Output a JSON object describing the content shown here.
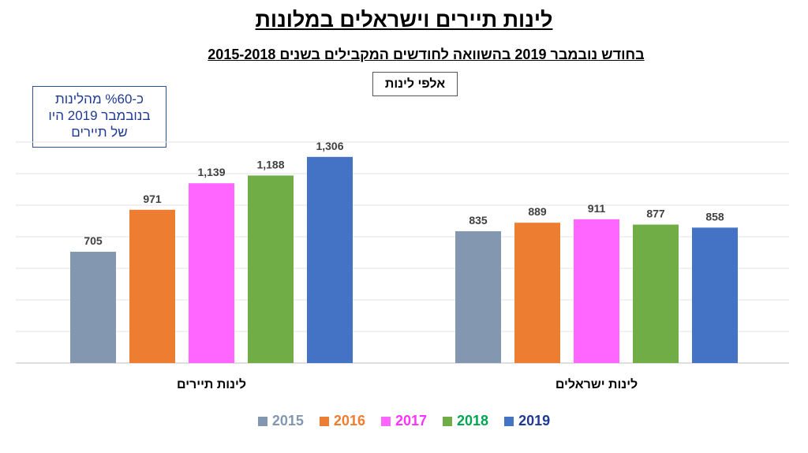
{
  "chart_data": {
    "type": "bar",
    "title": "לינות תיירים  וישראלים במלונות",
    "subtitle": "בחודש נובמבר 2019 בהשוואה לחודשים המקבילים בשנים 2015-2018",
    "unit_label": "אלפי לינות",
    "annotation": [
      "כ-%60 מהלינות",
      "בנובמבר 2019 היו",
      "של תיירים"
    ],
    "categories": [
      "לינות  תיירים",
      "לינות ישראלים"
    ],
    "series": [
      {
        "name": "2015",
        "color": "#8497B0",
        "values": [
          705,
          835
        ],
        "labels": [
          "705",
          "835"
        ]
      },
      {
        "name": "2016",
        "color": "#ED7D31",
        "values": [
          971,
          889
        ],
        "labels": [
          "971",
          "889"
        ]
      },
      {
        "name": "2017",
        "color": "#FF66FF",
        "values": [
          1139,
          911
        ],
        "labels": [
          "1,139",
          "911"
        ]
      },
      {
        "name": "2018",
        "color": "#70AD47",
        "values": [
          1188,
          877
        ],
        "labels": [
          "1,188",
          "877"
        ]
      },
      {
        "name": "2019",
        "color": "#4472C4",
        "values": [
          1306,
          858
        ],
        "labels": [
          "1,306",
          "858"
        ]
      }
    ],
    "legend_text_colors": [
      "#8497B0",
      "#ED7D31",
      "#FF33FF",
      "#00A651",
      "#1F3A93"
    ],
    "ylim": [
      0,
      1400
    ],
    "grid": true,
    "legend_position": "bottom"
  }
}
